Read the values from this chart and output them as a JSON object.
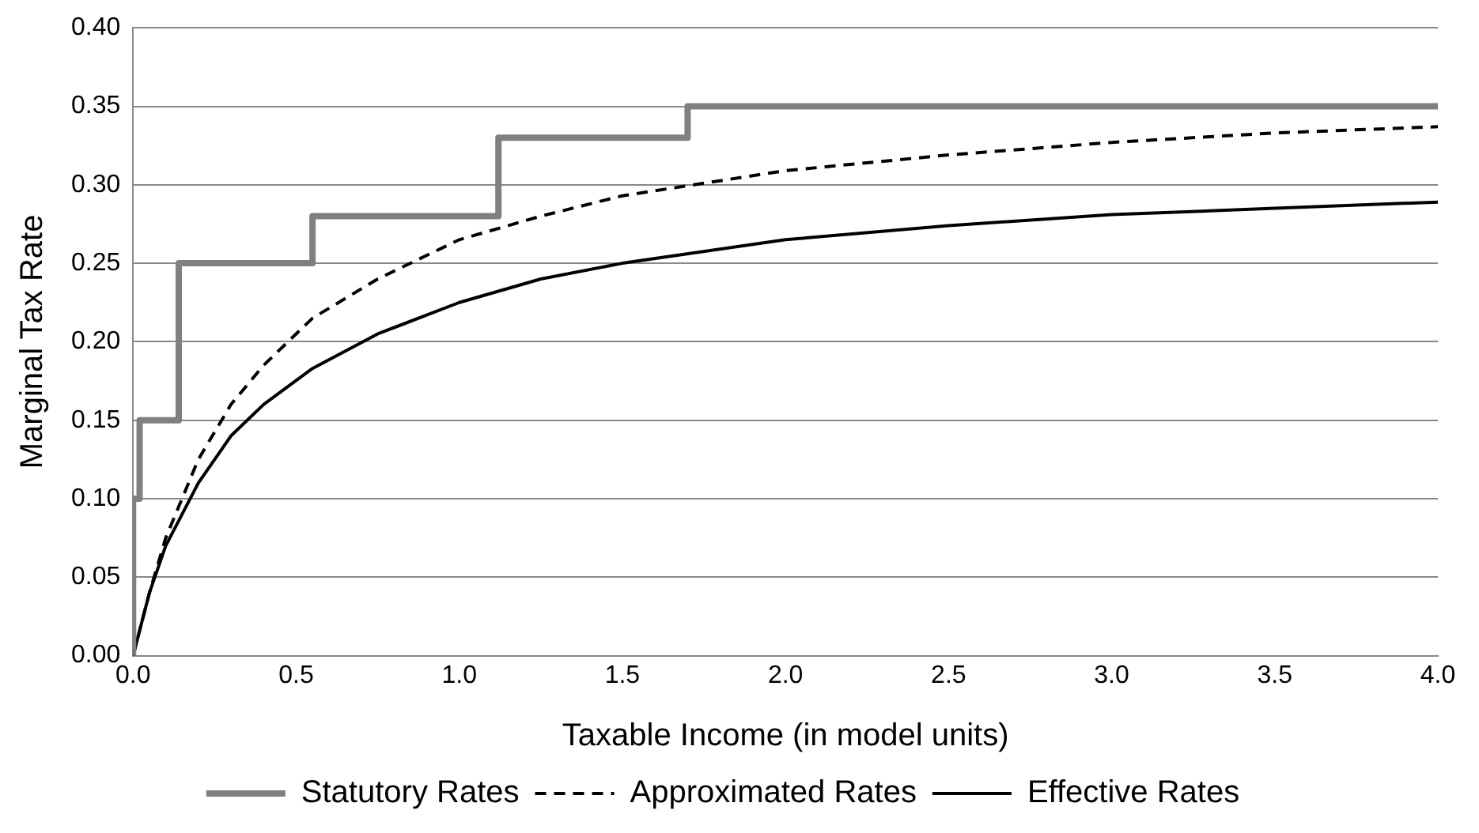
{
  "chart_data": {
    "type": "line",
    "xlabel": "Taxable Income (in model units)",
    "ylabel": "Marginal Tax Rate",
    "xlim": [
      0,
      4
    ],
    "xticks": [
      {
        "value": 0,
        "label": "0.0"
      },
      {
        "value": 0.5,
        "label": "0.5"
      },
      {
        "value": 1,
        "label": "1.0"
      },
      {
        "value": 1.5,
        "label": "1.5"
      },
      {
        "value": 2,
        "label": "2.0"
      },
      {
        "value": 2.5,
        "label": "2.5"
      },
      {
        "value": 3,
        "label": "3.0"
      },
      {
        "value": 3.5,
        "label": "3.5"
      },
      {
        "value": 4,
        "label": "4.0"
      }
    ],
    "ylim": [
      0,
      0.4
    ],
    "yticks": [
      {
        "value": 0,
        "label": "0.00"
      },
      {
        "value": 0.05,
        "label": "0.05"
      },
      {
        "value": 0.1,
        "label": "0.10"
      },
      {
        "value": 0.15,
        "label": "0.15"
      },
      {
        "value": 0.2,
        "label": "0.20"
      },
      {
        "value": 0.25,
        "label": "0.25"
      },
      {
        "value": 0.3,
        "label": "0.30"
      },
      {
        "value": 0.35,
        "label": "0.35"
      },
      {
        "value": 0.4,
        "label": "0.40"
      }
    ],
    "grid": "y",
    "legend": "bottom",
    "marker": "none",
    "series": [
      {
        "name": "Statutory Rates",
        "type": "step",
        "color": "#808080",
        "line_style": "solid",
        "x": [
          0,
          0.02,
          0.14,
          0.55,
          1.12,
          1.7,
          3.04,
          4.0
        ],
        "values": [
          0,
          0.1,
          0.15,
          0.25,
          0.28,
          0.33,
          0.35,
          0.35
        ]
      },
      {
        "name": "Approximated Rates",
        "color": "#000000",
        "line_style": "dashed",
        "x": [
          0,
          0.05,
          0.1,
          0.2,
          0.3,
          0.4,
          0.55,
          0.75,
          1.0,
          1.25,
          1.5,
          2.0,
          2.5,
          3.0,
          3.5,
          4.0
        ],
        "values": [
          0,
          0.04,
          0.075,
          0.125,
          0.16,
          0.185,
          0.215,
          0.24,
          0.265,
          0.28,
          0.293,
          0.309,
          0.319,
          0.327,
          0.333,
          0.337
        ]
      },
      {
        "name": "Effective Rates",
        "color": "#000000",
        "line_style": "solid",
        "x": [
          0,
          0.05,
          0.1,
          0.2,
          0.3,
          0.4,
          0.55,
          0.75,
          1.0,
          1.25,
          1.5,
          2.0,
          2.5,
          3.0,
          3.5,
          4.0
        ],
        "values": [
          0,
          0.04,
          0.07,
          0.11,
          0.14,
          0.16,
          0.183,
          0.205,
          0.225,
          0.24,
          0.25,
          0.265,
          0.274,
          0.281,
          0.285,
          0.289
        ]
      }
    ]
  }
}
